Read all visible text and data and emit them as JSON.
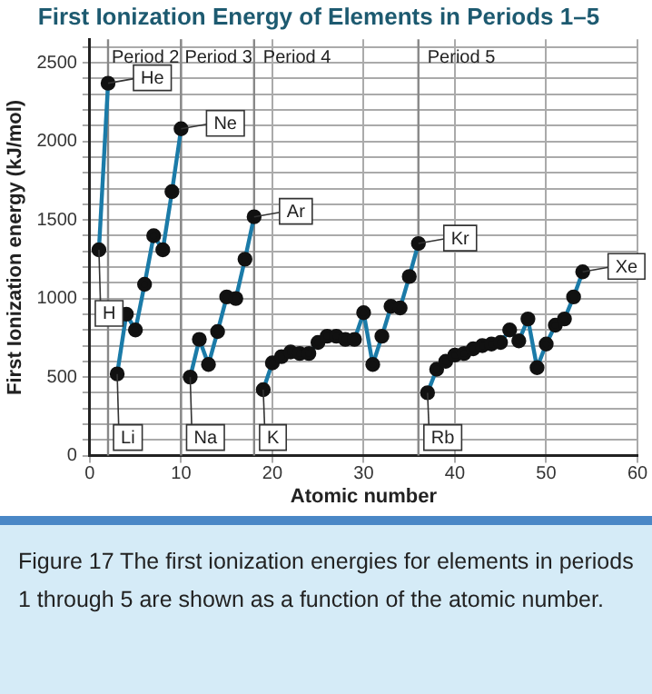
{
  "chart_data": {
    "type": "line",
    "title": "First Ionization Energy of Elements in Periods 1–5",
    "xlabel": "Atomic number",
    "ylabel": "First Ionization energy (kJ/mol)",
    "series": [
      {
        "color": "#1b7ba8",
        "x": [
          1,
          2
        ],
        "values": [
          1310,
          2370
        ]
      },
      {
        "color": "#1b7ba8",
        "x": [
          3,
          4,
          5,
          6,
          7,
          8,
          9,
          10
        ],
        "values": [
          520,
          900,
          800,
          1090,
          1400,
          1310,
          1680,
          2080
        ]
      },
      {
        "color": "#1b7ba8",
        "x": [
          11,
          12,
          13,
          14,
          15,
          16,
          17,
          18
        ],
        "values": [
          500,
          740,
          580,
          790,
          1010,
          1000,
          1250,
          1520
        ]
      },
      {
        "color": "#1b7ba8",
        "x": [
          19,
          20,
          21,
          22,
          23,
          24,
          25,
          26,
          27,
          28,
          29,
          30,
          31,
          32,
          33,
          34,
          35,
          36
        ],
        "values": [
          420,
          590,
          630,
          660,
          650,
          650,
          720,
          760,
          760,
          740,
          740,
          910,
          580,
          760,
          950,
          940,
          1140,
          1350
        ]
      },
      {
        "color": "#1b7ba8",
        "x": [
          37,
          38,
          39,
          40,
          41,
          42,
          43,
          44,
          45,
          46,
          47,
          48,
          49,
          50,
          51,
          52,
          53,
          54
        ],
        "values": [
          400,
          550,
          600,
          640,
          650,
          680,
          700,
          710,
          720,
          800,
          730,
          870,
          560,
          710,
          830,
          870,
          1010,
          1170
        ]
      }
    ],
    "marker": "circle",
    "line_style": "solid",
    "grid": true,
    "legend": false,
    "xlim": [
      0,
      60
    ],
    "xticks": [
      0,
      10,
      20,
      30,
      40,
      50,
      60
    ],
    "ylim": [
      0,
      2650
    ],
    "yticks": [
      0,
      {
        "value": 100,
        "label": null
      },
      {
        "value": 200,
        "label": null
      },
      {
        "value": 300,
        "label": null
      },
      {
        "value": 400,
        "label": null
      },
      500,
      {
        "value": 600,
        "label": null
      },
      {
        "value": 700,
        "label": null
      },
      {
        "value": 800,
        "label": null
      },
      {
        "value": 900,
        "label": null
      },
      1000,
      {
        "value": 1100,
        "label": null
      },
      {
        "value": 1200,
        "label": null
      },
      {
        "value": 1300,
        "label": null
      },
      {
        "value": 1400,
        "label": null
      },
      1500,
      {
        "value": 1600,
        "label": null
      },
      {
        "value": 1700,
        "label": null
      },
      {
        "value": 1800,
        "label": null
      },
      {
        "value": 1900,
        "label": null
      },
      2000,
      {
        "value": 2100,
        "label": null
      },
      {
        "value": 2200,
        "label": null
      },
      {
        "value": 2300,
        "label": null
      },
      {
        "value": 2400,
        "label": null
      },
      2500,
      {
        "value": 2600,
        "label": null
      }
    ],
    "ref_lines": [
      {
        "axis": "x",
        "value": 2,
        "label": "Period 2"
      },
      {
        "axis": "x",
        "value": 10,
        "label": "Period 3"
      },
      {
        "axis": "x",
        "value": 18,
        "label": "Period 4"
      },
      {
        "axis": "x",
        "value": 36,
        "label": "Period 5"
      }
    ],
    "annotations": [
      {
        "text": "H",
        "x": 1,
        "y": 1310
      },
      {
        "text": "He",
        "x": 2,
        "y": 2370
      },
      {
        "text": "Li",
        "x": 3,
        "y": 520
      },
      {
        "text": "Ne",
        "x": 10,
        "y": 2080
      },
      {
        "text": "Na",
        "x": 11,
        "y": 500
      },
      {
        "text": "Ar",
        "x": 18,
        "y": 1520
      },
      {
        "text": "K",
        "x": 19,
        "y": 420
      },
      {
        "text": "Kr",
        "x": 36,
        "y": 1350
      },
      {
        "text": "Rb",
        "x": 37,
        "y": 400
      },
      {
        "text": "Xe",
        "x": 54,
        "y": 1170
      },
      "Figure 17  The first ionization energies for elements in periods 1 through 5 are shown as a function of the atomic number."
    ]
  }
}
